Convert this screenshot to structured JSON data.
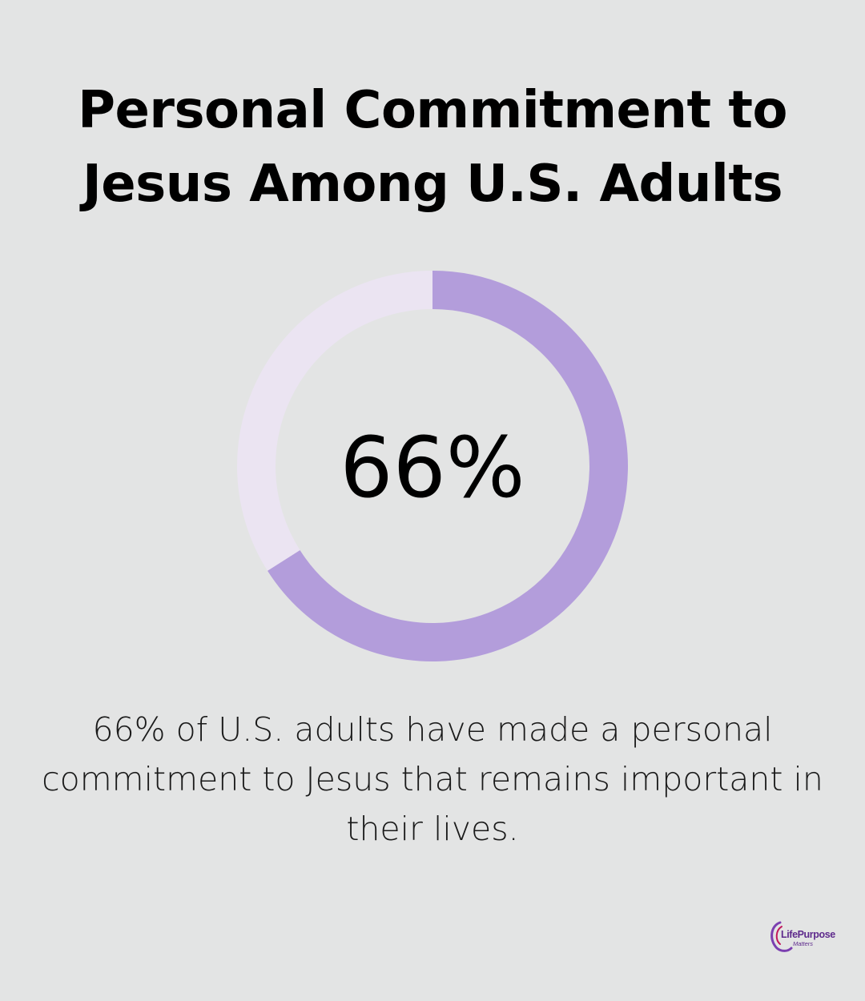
{
  "chart_data": {
    "type": "pie",
    "title": "Personal Commitment to Jesus Among U.S. Adults",
    "center_label": "66%",
    "caption": "66% of U.S. adults have made a personal commitment to Jesus that remains important in their lives.",
    "slices": [
      {
        "value": 66,
        "color": "#b39ddb"
      },
      {
        "value": 34,
        "color": "#ebe4f2"
      }
    ]
  },
  "brand": {
    "logo_text": "LifePurpose",
    "logo_subtext": "Matters"
  }
}
